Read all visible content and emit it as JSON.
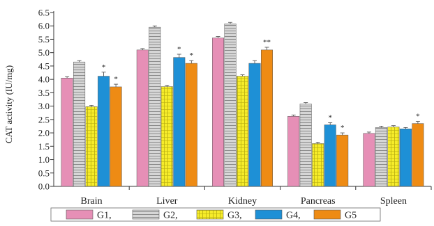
{
  "chart_data": {
    "type": "bar",
    "ylabel": "CAT activity (IU/mg)",
    "ylim": [
      0,
      6.5
    ],
    "yticks": [
      "0.0",
      "0.5",
      "1.0",
      "1.5",
      "2.0",
      "2.5",
      "3.0",
      "3.5",
      "4.0",
      "4.5",
      "5.0",
      "5.5",
      "6.0",
      "6.5"
    ],
    "categories": [
      "Brain",
      "Liver",
      "Kidney",
      "Pancreas",
      "Spleen"
    ],
    "legend_position": "bottom",
    "grid": false,
    "series": [
      {
        "name": "G1,",
        "color": "#e68fb6",
        "pattern": "solid",
        "values": [
          4.05,
          5.1,
          5.55,
          2.62,
          1.98
        ],
        "errors": [
          0.05,
          0.05,
          0.05,
          0.05,
          0.05
        ],
        "markers": [
          "",
          "",
          "",
          "",
          ""
        ]
      },
      {
        "name": "G2,",
        "color": "#c8c8c8",
        "pattern": "hlines",
        "values": [
          4.65,
          5.95,
          6.08,
          3.08,
          2.2
        ],
        "errors": [
          0.05,
          0.05,
          0.05,
          0.05,
          0.05
        ],
        "markers": [
          "",
          "",
          "",
          "",
          ""
        ]
      },
      {
        "name": "G3,",
        "color": "#f4e81c",
        "pattern": "vhatch",
        "values": [
          2.98,
          3.73,
          4.12,
          1.6,
          2.22
        ],
        "errors": [
          0.05,
          0.05,
          0.05,
          0.05,
          0.05
        ],
        "markers": [
          "",
          "",
          "",
          "",
          ""
        ]
      },
      {
        "name": "G4,",
        "color": "#1e90d6",
        "pattern": "solid",
        "values": [
          4.12,
          4.82,
          4.6,
          2.3,
          2.15
        ],
        "errors": [
          0.15,
          0.12,
          0.1,
          0.08,
          0.05
        ],
        "markers": [
          "*",
          "*",
          "",
          "*",
          ""
        ]
      },
      {
        "name": "G5",
        "color": "#ee8b14",
        "pattern": "solid",
        "values": [
          3.72,
          4.6,
          5.1,
          1.92,
          2.35
        ],
        "errors": [
          0.1,
          0.1,
          0.1,
          0.08,
          0.08
        ],
        "markers": [
          "*",
          "*",
          "**",
          "*",
          "*"
        ]
      }
    ]
  }
}
